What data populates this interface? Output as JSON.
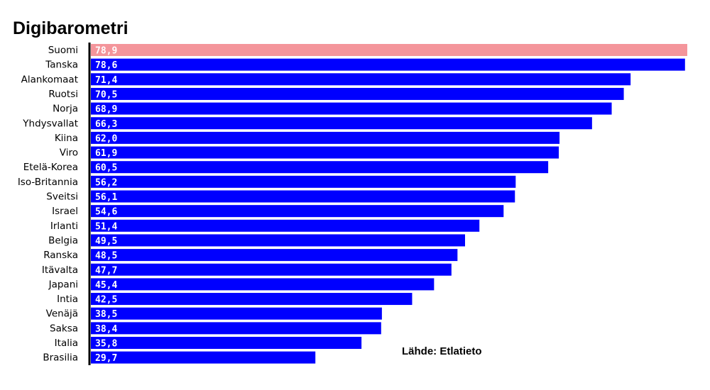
{
  "chart_data": {
    "type": "bar",
    "orientation": "horizontal",
    "title": "Digibarometri",
    "source": "Lähde: Etlatieto",
    "categories": [
      "Suomi",
      "Tanska",
      "Alankomaat",
      "Ruotsi",
      "Norja",
      "Yhdysvallat",
      "Kiina",
      "Viro",
      "Etelä-Korea",
      "Iso-Britannia",
      "Sveitsi",
      "Israel",
      "Irlanti",
      "Belgia",
      "Ranska",
      "Itävalta",
      "Japani",
      "Intia",
      "Venäjä",
      "Saksa",
      "Italia",
      "Brasilia"
    ],
    "values": [
      78.9,
      78.6,
      71.4,
      70.5,
      68.9,
      66.3,
      62.0,
      61.9,
      60.5,
      56.2,
      56.1,
      54.6,
      51.4,
      49.5,
      48.5,
      47.7,
      45.4,
      42.5,
      38.5,
      38.4,
      35.8,
      29.7
    ],
    "value_labels": [
      "78,9",
      "78,6",
      "71,4",
      "70,5",
      "68,9",
      "66,3",
      "62,0",
      "61,9",
      "60,5",
      "56,2",
      "56,1",
      "54,6",
      "51,4",
      "49,5",
      "48,5",
      "47,7",
      "45,4",
      "42,5",
      "38,5",
      "38,4",
      "35,8",
      "29,7"
    ],
    "highlight_category": "Suomi",
    "xlim": [
      0,
      78.9
    ],
    "colors": {
      "bar": "#0000ff",
      "highlight": "#f4959b",
      "axis": "#000000",
      "value_text": "#ffffff",
      "title": "#000000"
    }
  }
}
